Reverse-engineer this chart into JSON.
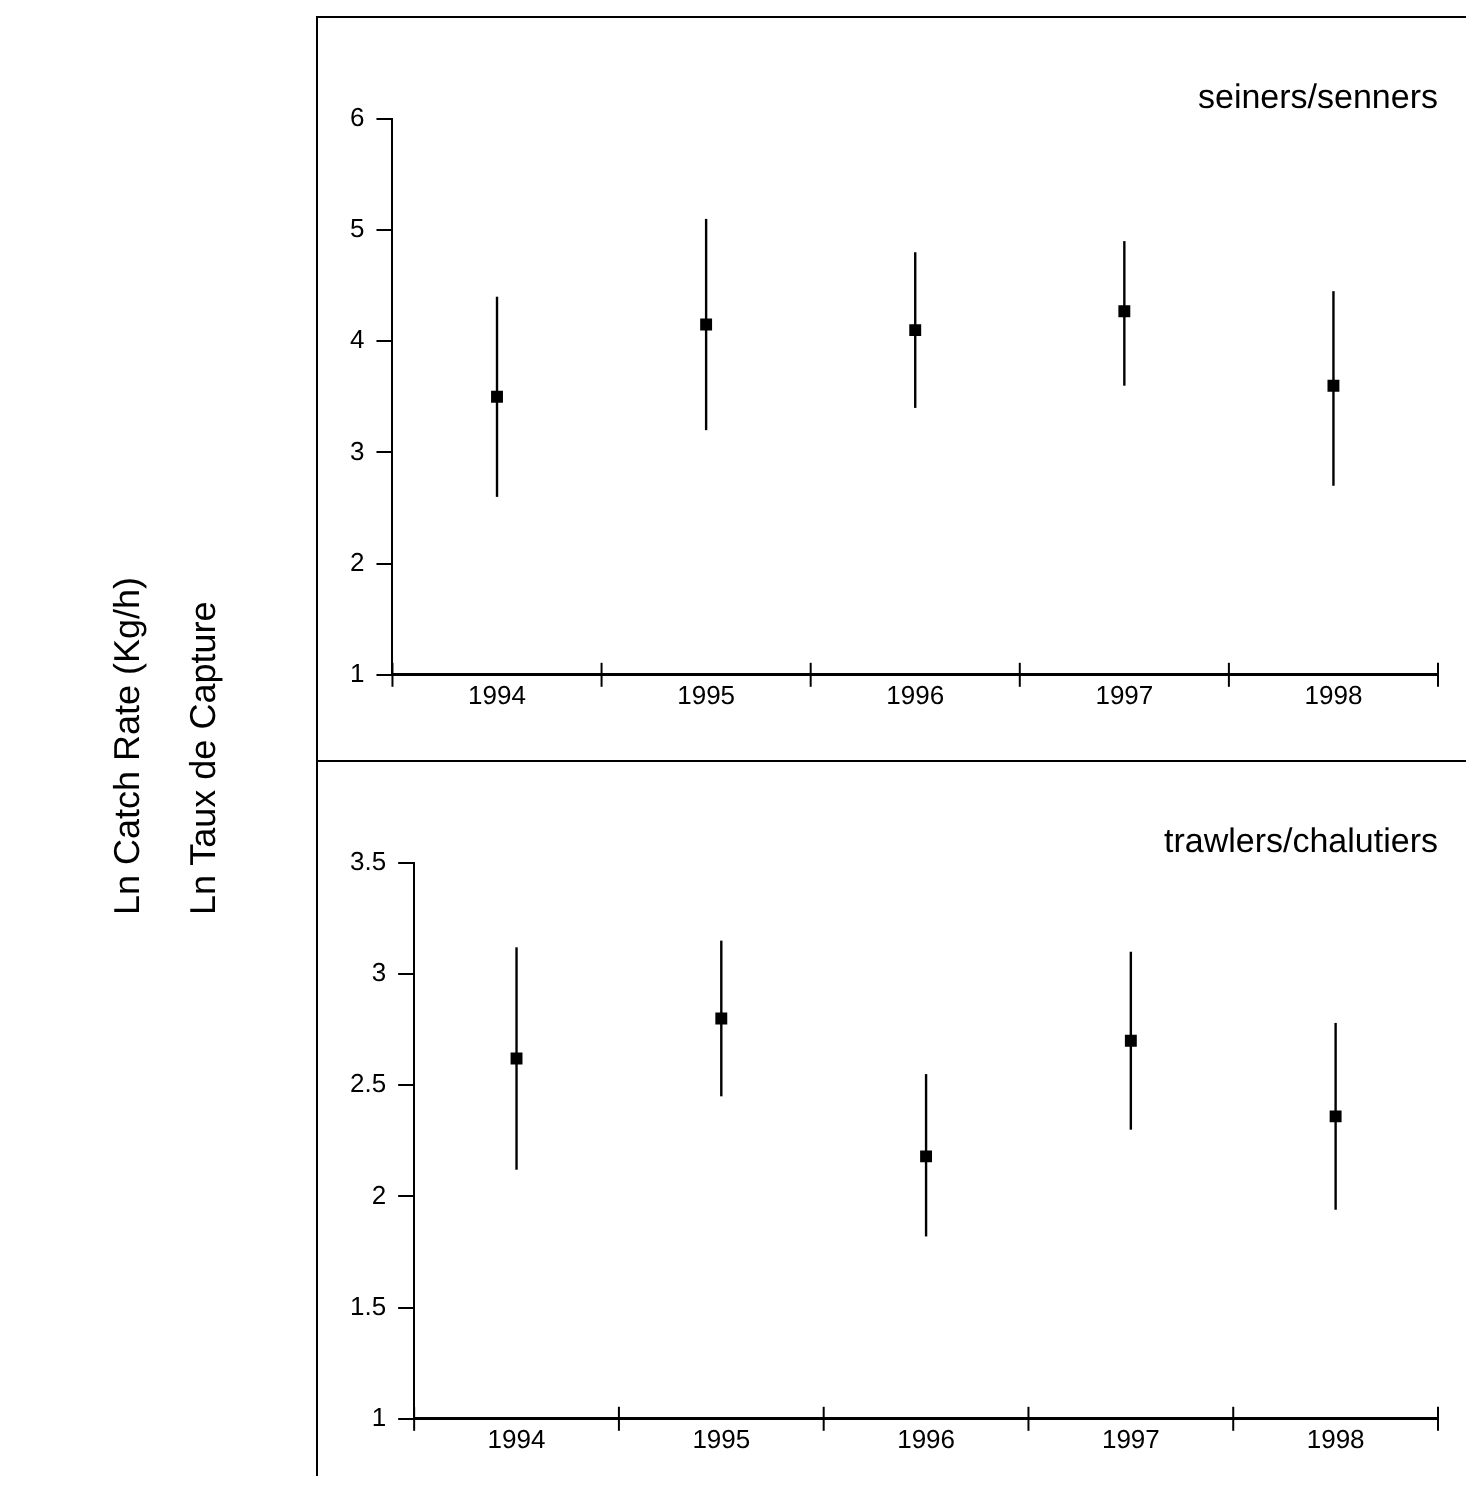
{
  "chart_data": [
    {
      "type": "scatter",
      "title": "seiners/senners",
      "ylabel": "Ln Catch Rate (Kg/h)\nLn Taux de Capture",
      "categories": [
        "1994",
        "1995",
        "1996",
        "1997",
        "1998"
      ],
      "values": [
        3.5,
        4.15,
        4.1,
        4.27,
        3.6
      ],
      "errors": [
        [
          2.6,
          4.4
        ],
        [
          3.2,
          5.1
        ],
        [
          3.4,
          4.8
        ],
        [
          3.6,
          4.9
        ],
        [
          2.7,
          4.45
        ]
      ],
      "color": "#000000",
      "ylim": [
        1,
        6
      ],
      "yticks": [
        1,
        2,
        3,
        4,
        5,
        6
      ],
      "grid": false,
      "legend": false,
      "marker": "square"
    },
    {
      "type": "scatter",
      "title": "trawlers/chalutiers",
      "categories": [
        "1994",
        "1995",
        "1996",
        "1997",
        "1998"
      ],
      "values": [
        2.62,
        2.8,
        2.18,
        2.7,
        2.36
      ],
      "errors": [
        [
          2.12,
          3.12
        ],
        [
          2.45,
          3.15
        ],
        [
          1.82,
          2.55
        ],
        [
          2.3,
          3.1
        ],
        [
          1.94,
          2.78
        ]
      ],
      "color": "#000000",
      "ylim": [
        1,
        3.5
      ],
      "yticks": [
        1,
        1.5,
        2,
        2.5,
        3,
        3.5
      ],
      "grid": false,
      "legend": false,
      "marker": "square"
    }
  ]
}
